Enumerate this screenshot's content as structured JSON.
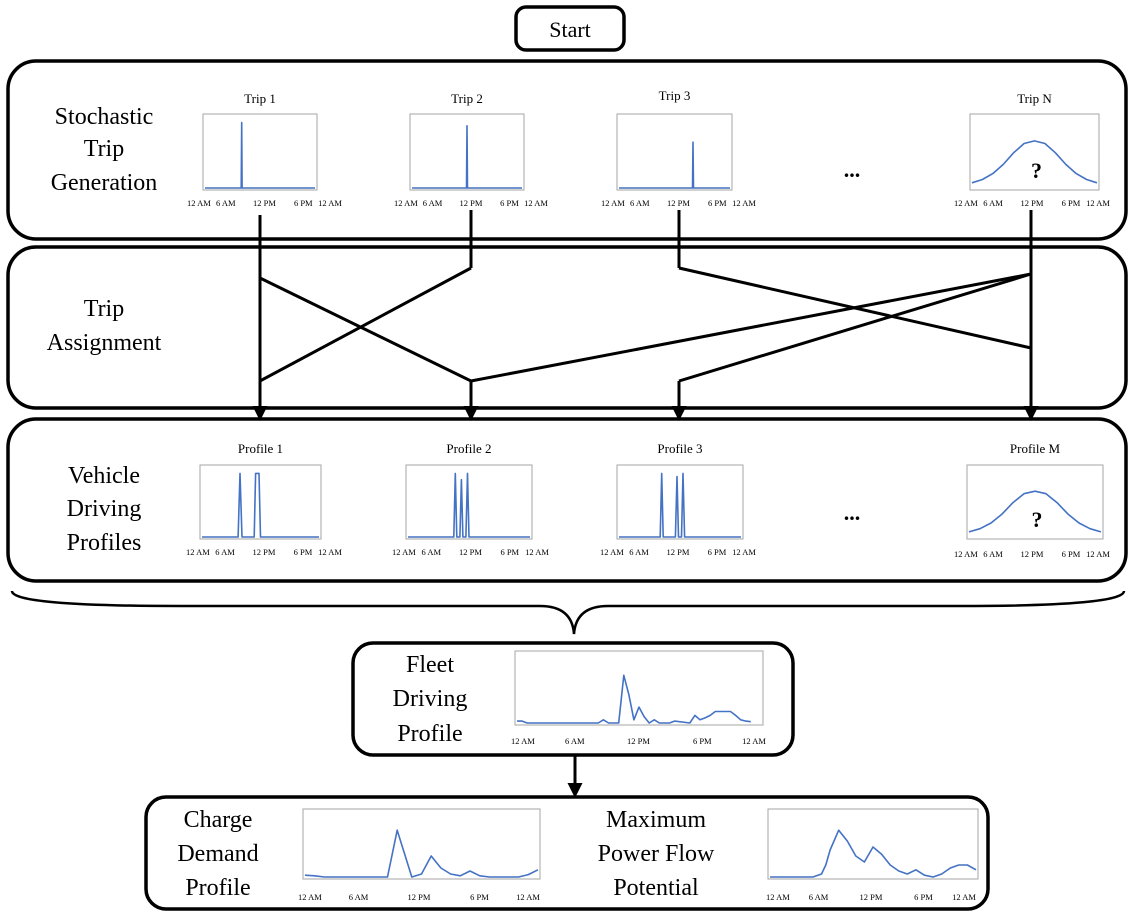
{
  "start": {
    "label": "Start"
  },
  "stages": {
    "trip_generation": {
      "label_lines": [
        "Stochastic",
        "Trip",
        "Generation"
      ]
    },
    "trip_assignment": {
      "label_lines": [
        "Trip",
        "Assignment"
      ]
    },
    "driving_profiles": {
      "label_lines": [
        "Vehicle",
        "Driving",
        "Profiles"
      ]
    },
    "fleet_profile": {
      "label_lines": [
        "Fleet",
        "Driving",
        "Profile"
      ]
    },
    "charge_demand": {
      "label_lines": [
        "Charge",
        "Demand",
        "Profile"
      ]
    },
    "max_power_flow": {
      "label_lines": [
        "Maximum",
        "Power Flow",
        "Potential"
      ]
    }
  },
  "ellipsis": "...",
  "unknown_marker": "?",
  "time_ticks": [
    "12 AM",
    "6 AM",
    "12 PM",
    "6 PM",
    "12 AM"
  ],
  "line_color": "#4472c4",
  "chart_data": [
    {
      "id": "trip1",
      "type": "line",
      "title": "Trip 1",
      "x": [
        0,
        7.9,
        8.0,
        8.1,
        24
      ],
      "y": [
        0,
        0,
        1,
        0,
        0
      ],
      "ylim": [
        0,
        1.1
      ],
      "xlim": [
        0,
        24
      ]
    },
    {
      "id": "trip2",
      "type": "line",
      "title": "Trip 2",
      "x": [
        0,
        11.9,
        12.0,
        12.1,
        24
      ],
      "y": [
        0,
        0,
        0.95,
        0,
        0
      ],
      "ylim": [
        0,
        1.1
      ],
      "xlim": [
        0,
        24
      ]
    },
    {
      "id": "trip3",
      "type": "line",
      "title": "Trip 3",
      "x": [
        0,
        15.9,
        16.0,
        16.1,
        24
      ],
      "y": [
        0,
        0,
        0.7,
        0,
        0
      ],
      "ylim": [
        0,
        1.1
      ],
      "xlim": [
        0,
        24
      ]
    },
    {
      "id": "tripN",
      "type": "line",
      "title": "Trip N",
      "x": [
        0,
        2,
        4,
        6,
        8,
        10,
        12,
        14,
        16,
        18,
        20,
        22,
        24
      ],
      "y": [
        0.08,
        0.13,
        0.22,
        0.36,
        0.54,
        0.68,
        0.72,
        0.68,
        0.54,
        0.36,
        0.22,
        0.13,
        0.08
      ],
      "ylim": [
        0,
        1.1
      ],
      "xlim": [
        0,
        24
      ],
      "annotation": "?"
    },
    {
      "id": "profile1",
      "type": "line",
      "title": "Profile 1",
      "x": [
        0,
        7.4,
        7.8,
        8.2,
        10.7,
        11.0,
        11.3,
        11.7,
        12.0,
        24
      ],
      "y": [
        0,
        0,
        1,
        0,
        0,
        1,
        1,
        1,
        0,
        0
      ],
      "ylim": [
        0,
        1.1
      ],
      "xlim": [
        0,
        24
      ]
    },
    {
      "id": "profile2",
      "type": "line",
      "title": "Profile 2",
      "x": [
        0,
        9.0,
        9.3,
        9.6,
        10.2,
        10.5,
        10.8,
        11.4,
        11.7,
        12.0,
        24
      ],
      "y": [
        0,
        0,
        1,
        0,
        0,
        0.9,
        0,
        0,
        1,
        0,
        0
      ],
      "ylim": [
        0,
        1.1
      ],
      "xlim": [
        0,
        24
      ]
    },
    {
      "id": "profile3",
      "type": "line",
      "title": "Profile 3",
      "x": [
        0,
        8.1,
        8.4,
        8.7,
        11.1,
        11.4,
        11.7,
        12.3,
        12.6,
        12.9,
        24
      ],
      "y": [
        0,
        0,
        1,
        0,
        0,
        0.95,
        0,
        0,
        1,
        0,
        0
      ],
      "ylim": [
        0,
        1.1
      ],
      "xlim": [
        0,
        24
      ]
    },
    {
      "id": "profileM",
      "type": "line",
      "title": "Profile M",
      "x": [
        0,
        2,
        4,
        6,
        8,
        10,
        12,
        14,
        16,
        18,
        20,
        22,
        24
      ],
      "y": [
        0.08,
        0.13,
        0.22,
        0.36,
        0.54,
        0.68,
        0.72,
        0.68,
        0.54,
        0.36,
        0.22,
        0.13,
        0.08
      ],
      "ylim": [
        0,
        1.1
      ],
      "xlim": [
        0,
        24
      ],
      "annotation": "?"
    },
    {
      "id": "fleet",
      "type": "line",
      "x": [
        0,
        0.5,
        1,
        8,
        8.5,
        9,
        9.5,
        10,
        10.5,
        11,
        11.5,
        12,
        12.5,
        13,
        13.5,
        14,
        14.5,
        15,
        15.5,
        17,
        17.5,
        18,
        18.5,
        19,
        19.5,
        20,
        20.5,
        21,
        21.5,
        22,
        22.5,
        23
      ],
      "y": [
        0.03,
        0.03,
        0,
        0,
        0.05,
        0,
        0,
        0,
        0.75,
        0.45,
        0.05,
        0.25,
        0.1,
        0,
        0.05,
        0,
        0,
        0,
        0.03,
        0,
        0.12,
        0.05,
        0.08,
        0.12,
        0.18,
        0.18,
        0.18,
        0.18,
        0.12,
        0.05,
        0.03,
        0.02
      ],
      "ylim": [
        0,
        1.1
      ],
      "xlim": [
        0,
        24
      ]
    },
    {
      "id": "charge",
      "type": "line",
      "x": [
        0,
        1,
        2,
        4,
        6,
        8,
        8.5,
        9.5,
        11,
        12,
        13,
        14,
        15,
        16,
        17,
        18,
        19,
        20,
        21,
        22,
        23,
        24
      ],
      "y": [
        0.03,
        0.02,
        0,
        0,
        0,
        0,
        0,
        0.78,
        0,
        0.05,
        0.35,
        0.15,
        0.05,
        0.02,
        0.1,
        0.02,
        0,
        0,
        0,
        0,
        0.04,
        0.12
      ],
      "ylim": [
        0,
        1.1
      ],
      "xlim": [
        0,
        24
      ]
    },
    {
      "id": "maxpower",
      "type": "line",
      "x": [
        0,
        2,
        4,
        5,
        6,
        6.5,
        7,
        8,
        9,
        10,
        11,
        12,
        13,
        14,
        15,
        16,
        17,
        18,
        19,
        20,
        21,
        22,
        23,
        24
      ],
      "y": [
        0,
        0,
        0,
        0,
        0.05,
        0.2,
        0.45,
        0.78,
        0.6,
        0.35,
        0.25,
        0.5,
        0.38,
        0.2,
        0.1,
        0.05,
        0.12,
        0.03,
        0,
        0.05,
        0.15,
        0.2,
        0.2,
        0.12
      ],
      "ylim": [
        0,
        1.1
      ],
      "xlim": [
        0,
        24
      ]
    }
  ]
}
